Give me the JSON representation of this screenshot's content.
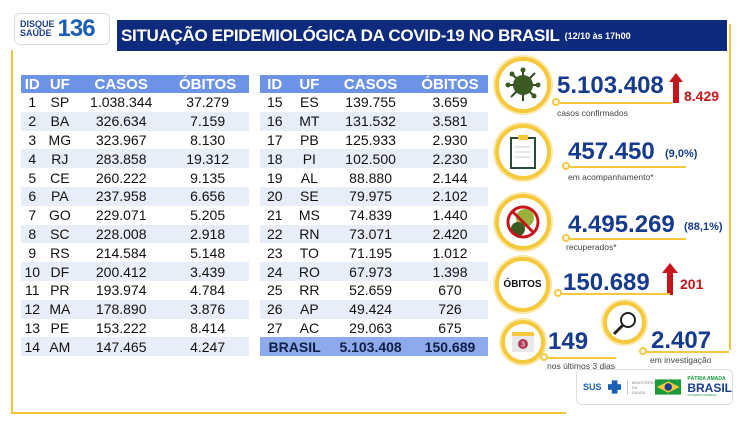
{
  "logo": {
    "line1": "DISQUE",
    "line2": "SAÚDE",
    "number": "136"
  },
  "header": {
    "title": "SITUAÇÃO EPIDEMIOLÓGICA DA COVID-19 NO BRASIL",
    "date": "(12/10 às 17h00"
  },
  "table": {
    "columns": [
      "ID",
      "UF",
      "CASOS",
      "ÓBITOS"
    ],
    "left_rows": [
      [
        "1",
        "SP",
        "1.038.344",
        "37.279"
      ],
      [
        "2",
        "BA",
        "326.634",
        "7.159"
      ],
      [
        "3",
        "MG",
        "323.967",
        "8.130"
      ],
      [
        "4",
        "RJ",
        "283.858",
        "19.312"
      ],
      [
        "5",
        "CE",
        "260.222",
        "9.135"
      ],
      [
        "6",
        "PA",
        "237.958",
        "6.656"
      ],
      [
        "7",
        "GO",
        "229.071",
        "5.205"
      ],
      [
        "8",
        "SC",
        "228.008",
        "2.918"
      ],
      [
        "9",
        "RS",
        "214.584",
        "5.148"
      ],
      [
        "10",
        "DF",
        "200.412",
        "3.439"
      ],
      [
        "11",
        "PR",
        "193.974",
        "4.784"
      ],
      [
        "12",
        "MA",
        "178.890",
        "3.876"
      ],
      [
        "13",
        "PE",
        "153.222",
        "8.414"
      ],
      [
        "14",
        "AM",
        "147.465",
        "4.247"
      ]
    ],
    "right_rows": [
      [
        "15",
        "ES",
        "139.755",
        "3.659"
      ],
      [
        "16",
        "MT",
        "131.532",
        "3.581"
      ],
      [
        "17",
        "PB",
        "125.933",
        "2.930"
      ],
      [
        "18",
        "PI",
        "102.500",
        "2.230"
      ],
      [
        "19",
        "AL",
        "88.880",
        "2.144"
      ],
      [
        "20",
        "SE",
        "79.975",
        "2.102"
      ],
      [
        "21",
        "MS",
        "74.839",
        "1.440"
      ],
      [
        "22",
        "RN",
        "73.071",
        "2.420"
      ],
      [
        "23",
        "TO",
        "71.195",
        "1.012"
      ],
      [
        "24",
        "RO",
        "67.973",
        "1.398"
      ],
      [
        "25",
        "RR",
        "52.659",
        "670"
      ],
      [
        "26",
        "AP",
        "49.424",
        "726"
      ],
      [
        "27",
        "AC",
        "29.063",
        "675"
      ]
    ],
    "total": {
      "label": "BRASIL",
      "casos": "5.103.408",
      "obitos": "150.689"
    }
  },
  "stats": {
    "confirmed": {
      "value": "5.103.408",
      "increase": "8.429",
      "label": "casos confirmados",
      "icon": "virus-icon"
    },
    "monitoring": {
      "value": "457.450",
      "percent": "(9,0%)",
      "label": "em acompanhamento*",
      "icon": "clipboard-icon"
    },
    "recovered": {
      "value": "4.495.269",
      "percent": "(88,1%)",
      "label": "recuperados*",
      "icon": "no-virus-icon"
    },
    "deaths": {
      "badge": "ÓBITOS",
      "value": "150.689",
      "increase": "201"
    },
    "recent": {
      "value": "149",
      "label": "nos últimos 3 dias",
      "calendar_number": "3",
      "icon": "calendar-icon"
    },
    "investigation": {
      "value": "2.407",
      "label": "em investigação",
      "icon": "magnifier-icon"
    }
  },
  "footer": {
    "sus": "SUS",
    "ministry": "MINISTÉRIO DA SAÚDE",
    "patria": "PÁTRIA AMADA",
    "brasil": "BRASIL",
    "gov": "GOVERNO FEDERAL"
  },
  "colors": {
    "navy": "#0d2a7c",
    "header_blue": "#6d93e6",
    "accent_yellow": "#f4c93e",
    "red": "#c4161c"
  }
}
